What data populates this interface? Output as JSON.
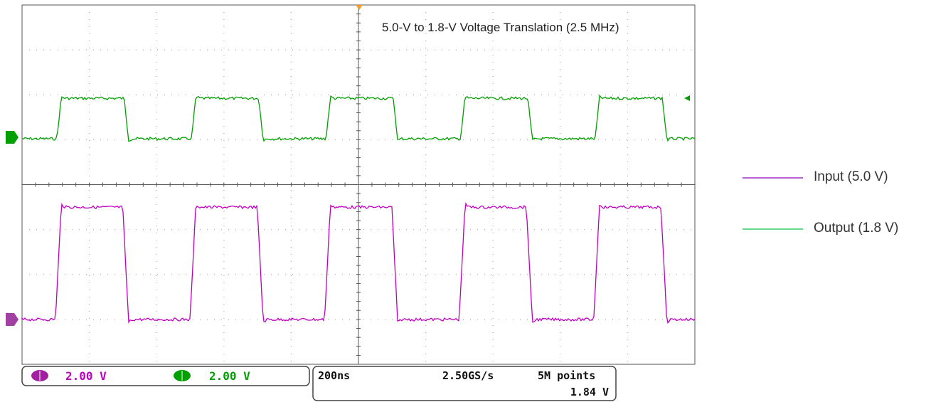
{
  "chart_data": {
    "type": "line",
    "title": "5.0-V to 1.8-V Voltage Translation (2.5 MHz)",
    "frequency_mhz": 2.5,
    "grid": true,
    "divisions": {
      "x": 10,
      "y": 8
    },
    "time_per_div_ns": 200,
    "series": [
      {
        "name": "Input (5.0 V)",
        "color": "#c000c0",
        "amplitude_v": 5.0,
        "volts_per_div": 2.0
      },
      {
        "name": "Output (1.8 V)",
        "color": "#00a000",
        "amplitude_v": 1.8,
        "volts_per_div": 2.0
      }
    ],
    "legend_position": "right"
  },
  "status_bar": {
    "ch_input_scale": "2.00 V",
    "ch_output_scale": "2.00 V",
    "timebase": "200ns",
    "sample_rate": "2.50GS/s",
    "record_length": "5M points",
    "trigger_level": "1.84 V"
  },
  "colors": {
    "input": "#c000c0",
    "output": "#00a000",
    "grid": "#b0b0b0",
    "trigger_marker": "#f0a030",
    "input_legend": "#9b30c8",
    "output_legend": "#33cc66"
  }
}
